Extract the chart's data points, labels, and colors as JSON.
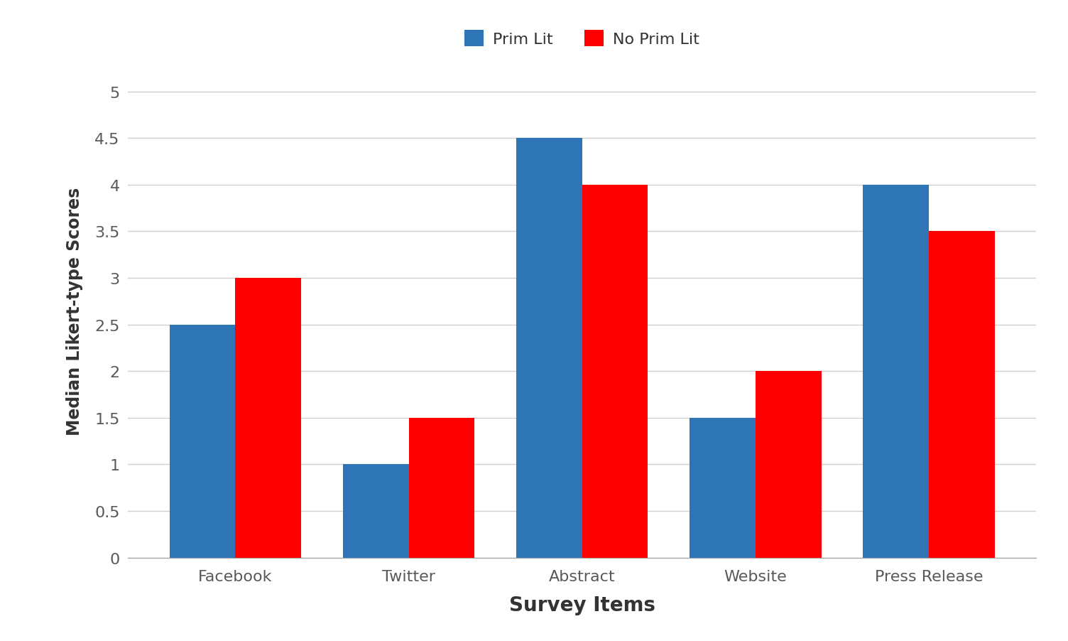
{
  "categories": [
    "Facebook",
    "Twitter",
    "Abstract",
    "Website",
    "Press Release"
  ],
  "prim_lit_values": [
    2.5,
    1.0,
    4.5,
    1.5,
    4.0
  ],
  "no_prim_lit_values": [
    3.0,
    1.5,
    4.0,
    2.0,
    3.5
  ],
  "prim_lit_color": "#2E75B6",
  "no_prim_lit_color": "#FF0000",
  "prim_lit_label": "Prim Lit",
  "no_prim_lit_label": "No Prim Lit",
  "xlabel": "Survey Items",
  "ylabel": "Median Likert-type Scores",
  "ylim": [
    0,
    5.3
  ],
  "yticks": [
    0,
    0.5,
    1.0,
    1.5,
    2.0,
    2.5,
    3.0,
    3.5,
    4.0,
    4.5,
    5.0
  ],
  "ytick_labels": [
    "0",
    "0.5",
    "1",
    "1.5",
    "2",
    "2.5",
    "3",
    "3.5",
    "4",
    "4.5",
    "5"
  ],
  "background_color": "#ffffff",
  "grid_color": "#d0d0d0",
  "bar_width": 0.38,
  "xlabel_fontsize": 20,
  "ylabel_fontsize": 17,
  "tick_fontsize": 16,
  "legend_fontsize": 16,
  "tick_color": "#595959"
}
